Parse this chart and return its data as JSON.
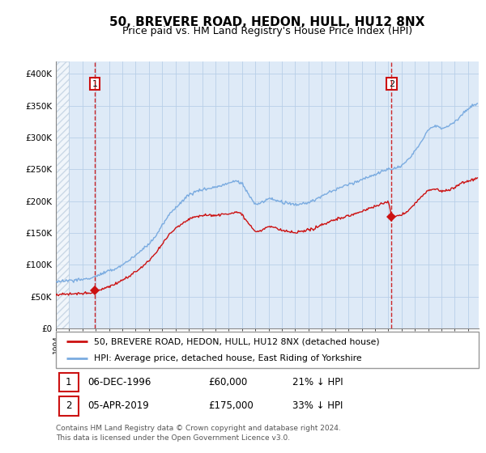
{
  "title": "50, BREVERE ROAD, HEDON, HULL, HU12 8NX",
  "subtitle": "Price paid vs. HM Land Registry's House Price Index (HPI)",
  "title_fontsize": 11,
  "subtitle_fontsize": 9,
  "ylim": [
    0,
    420000
  ],
  "yticks": [
    0,
    50000,
    100000,
    150000,
    200000,
    250000,
    300000,
    350000,
    400000
  ],
  "ytick_labels": [
    "£0",
    "£50K",
    "£100K",
    "£150K",
    "£200K",
    "£250K",
    "£300K",
    "£350K",
    "£400K"
  ],
  "xlim_start": 1994.0,
  "xlim_end": 2025.8,
  "hpi_color": "#7aabe0",
  "price_color": "#cc1111",
  "chart_bg": "#deeaf7",
  "marker1_date": 1996.92,
  "marker1_price": 60000,
  "marker2_date": 2019.25,
  "marker2_price": 175000,
  "vline1_x": 1996.92,
  "vline2_x": 2019.25,
  "legend_label_price": "50, BREVERE ROAD, HEDON, HULL, HU12 8NX (detached house)",
  "legend_label_hpi": "HPI: Average price, detached house, East Riding of Yorkshire",
  "footnote": "Contains HM Land Registry data © Crown copyright and database right 2024.\nThis data is licensed under the Open Government Licence v3.0.",
  "grid_color": "#b8cfe8",
  "hatch_color": "#c8d8e8"
}
